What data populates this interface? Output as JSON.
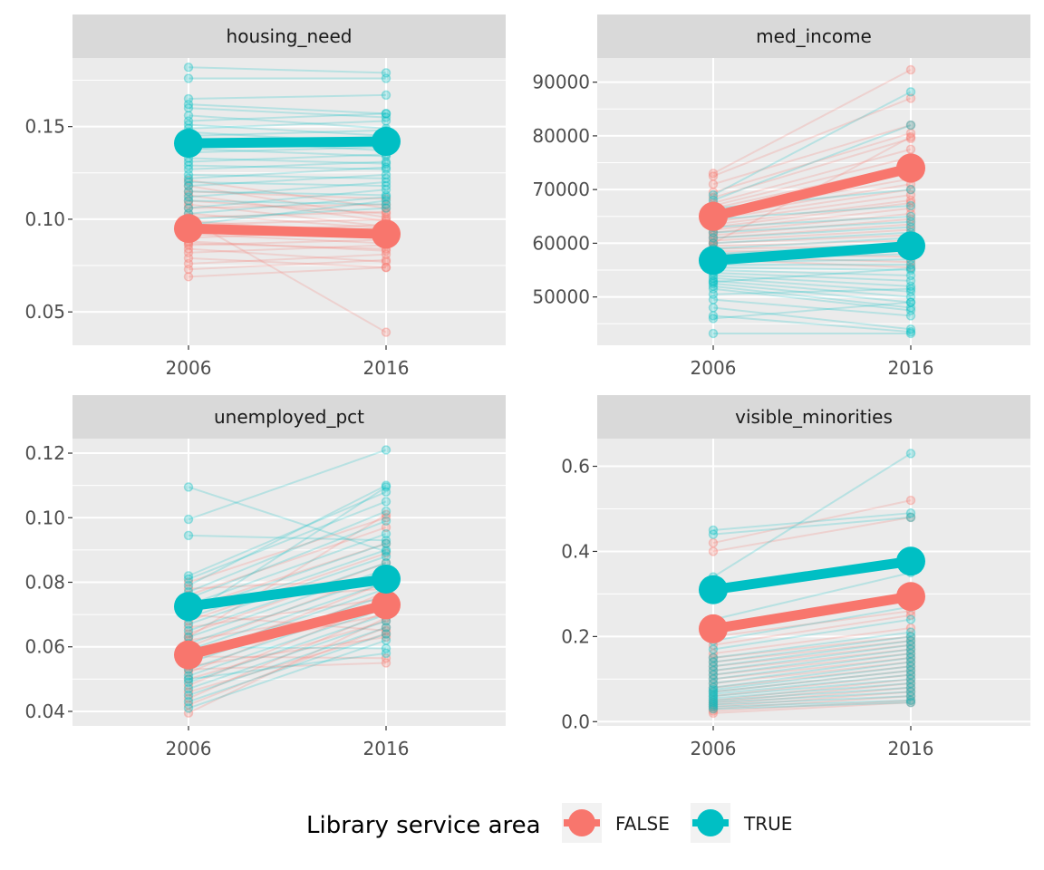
{
  "chart_data": {
    "type": "line",
    "x": [
      2006,
      2016
    ],
    "legend": {
      "title": "Library service area",
      "position": "bottom",
      "entries": [
        {
          "label": "FALSE",
          "color": "#F8766D"
        },
        {
          "label": "TRUE",
          "color": "#00BFC4"
        }
      ]
    },
    "colors": {
      "FALSE": "#F8766D",
      "TRUE": "#00BFC4",
      "panel_bg": "#EBEBEB",
      "strip_bg": "#D9D9D9",
      "grid": "#FFFFFF"
    },
    "grid": true,
    "panels": [
      {
        "title": "housing_need",
        "ylim": [
          0.032,
          0.187
        ],
        "yticks": [
          0.05,
          0.1,
          0.15
        ],
        "yticklabels": [
          "0.05",
          "0.10",
          "0.15"
        ],
        "means": {
          "FALSE": [
            0.095,
            0.092
          ],
          "TRUE": [
            0.141,
            0.142
          ]
        },
        "lines": {
          "FALSE": [
            [
              0.069,
              0.074
            ],
            [
              0.073,
              0.078
            ],
            [
              0.076,
              0.081
            ],
            [
              0.079,
              0.074
            ],
            [
              0.082,
              0.086
            ],
            [
              0.084,
              0.077
            ],
            [
              0.086,
              0.089
            ],
            [
              0.088,
              0.083
            ],
            [
              0.09,
              0.094
            ],
            [
              0.092,
              0.087
            ],
            [
              0.093,
              0.097
            ],
            [
              0.095,
              0.09
            ],
            [
              0.097,
              0.1
            ],
            [
              0.099,
              0.092
            ],
            [
              0.101,
              0.104
            ],
            [
              0.103,
              0.095
            ],
            [
              0.106,
              0.108
            ],
            [
              0.108,
              0.096
            ],
            [
              0.11,
              0.103
            ],
            [
              0.113,
              0.099
            ],
            [
              0.115,
              0.111
            ],
            [
              0.118,
              0.101
            ],
            [
              0.121,
              0.106
            ],
            [
              0.1,
              0.039
            ],
            [
              0.087,
              0.084
            ]
          ],
          "TRUE": [
            [
              0.182,
              0.179
            ],
            [
              0.176,
              0.176
            ],
            [
              0.165,
              0.167
            ],
            [
              0.162,
              0.157
            ],
            [
              0.16,
              0.155
            ],
            [
              0.156,
              0.149
            ],
            [
              0.153,
              0.157
            ],
            [
              0.151,
              0.145
            ],
            [
              0.149,
              0.153
            ],
            [
              0.147,
              0.141
            ],
            [
              0.145,
              0.148
            ],
            [
              0.143,
              0.137
            ],
            [
              0.14,
              0.142
            ],
            [
              0.138,
              0.134
            ],
            [
              0.136,
              0.139
            ],
            [
              0.133,
              0.13
            ],
            [
              0.131,
              0.135
            ],
            [
              0.129,
              0.127
            ],
            [
              0.127,
              0.131
            ],
            [
              0.124,
              0.122
            ],
            [
              0.122,
              0.128
            ],
            [
              0.12,
              0.118
            ],
            [
              0.118,
              0.124
            ],
            [
              0.115,
              0.113
            ],
            [
              0.112,
              0.12
            ],
            [
              0.11,
              0.108
            ],
            [
              0.106,
              0.116
            ],
            [
              0.103,
              0.112
            ],
            [
              0.1,
              0.106
            ],
            [
              0.097,
              0.11
            ]
          ]
        }
      },
      {
        "title": "med_income",
        "ylim": [
          41000,
          94500
        ],
        "yticks": [
          50000,
          60000,
          70000,
          80000,
          90000
        ],
        "yticklabels": [
          "50000",
          "60000",
          "70000",
          "80000",
          "90000"
        ],
        "means": {
          "FALSE": [
            65000,
            74000
          ],
          "TRUE": [
            56800,
            59500
          ]
        },
        "lines": {
          "FALSE": [
            [
              73000,
              92300
            ],
            [
              72500,
              87000
            ],
            [
              71000,
              82000
            ],
            [
              69500,
              80500
            ],
            [
              68500,
              79500
            ],
            [
              67500,
              77500
            ],
            [
              67000,
              76000
            ],
            [
              66500,
              74500
            ],
            [
              66000,
              73000
            ],
            [
              65500,
              72000
            ],
            [
              65000,
              71000
            ],
            [
              64500,
              70000
            ],
            [
              64000,
              69000
            ],
            [
              63500,
              68000
            ],
            [
              63000,
              67500
            ],
            [
              62500,
              66500
            ],
            [
              62000,
              65500
            ],
            [
              61500,
              64500
            ],
            [
              61000,
              63500
            ],
            [
              60500,
              62500
            ],
            [
              60000,
              61500
            ],
            [
              59500,
              60500
            ],
            [
              59000,
              59500
            ],
            [
              58500,
              58500
            ],
            [
              58000,
              57500
            ],
            [
              57500,
              56500
            ],
            [
              57000,
              55500
            ],
            [
              60000,
              79800
            ]
          ],
          "TRUE": [
            [
              69000,
              88200
            ],
            [
              68000,
              82000
            ],
            [
              66500,
              70000
            ],
            [
              64500,
              67000
            ],
            [
              63000,
              65000
            ],
            [
              62000,
              64000
            ],
            [
              61000,
              63000
            ],
            [
              60000,
              62000
            ],
            [
              59000,
              61000
            ],
            [
              58000,
              60000
            ],
            [
              57500,
              59000
            ],
            [
              57000,
              58000
            ],
            [
              56500,
              57000
            ],
            [
              56000,
              56000
            ],
            [
              55500,
              55000
            ],
            [
              55000,
              54000
            ],
            [
              54500,
              53000
            ],
            [
              54000,
              52000
            ],
            [
              53500,
              51000
            ],
            [
              53000,
              50000
            ],
            [
              52500,
              49000
            ],
            [
              52000,
              48000
            ],
            [
              51500,
              47500
            ],
            [
              50500,
              51500
            ],
            [
              49500,
              46500
            ],
            [
              48000,
              44000
            ],
            [
              46500,
              43500
            ],
            [
              46000,
              49000
            ],
            [
              43200,
              43200
            ],
            [
              52800,
              55300
            ]
          ]
        }
      },
      {
        "title": "unemployed_pct",
        "ylim": [
          0.0355,
          0.1245
        ],
        "yticks": [
          0.04,
          0.06,
          0.08,
          0.1,
          0.12
        ],
        "yticklabels": [
          "0.04",
          "0.06",
          "0.08",
          "0.10",
          "0.12"
        ],
        "means": {
          "FALSE": [
            0.0575,
            0.073
          ],
          "TRUE": [
            0.0725,
            0.081
          ]
        },
        "lines": {
          "FALSE": [
            [
              0.0395,
              0.069
            ],
            [
              0.042,
              0.066
            ],
            [
              0.044,
              0.071
            ],
            [
              0.046,
              0.064
            ],
            [
              0.048,
              0.074
            ],
            [
              0.05,
              0.068
            ],
            [
              0.052,
              0.077
            ],
            [
              0.054,
              0.063
            ],
            [
              0.056,
              0.08
            ],
            [
              0.058,
              0.07
            ],
            [
              0.06,
              0.083
            ],
            [
              0.062,
              0.072
            ],
            [
              0.064,
              0.086
            ],
            [
              0.066,
              0.075
            ],
            [
              0.068,
              0.089
            ],
            [
              0.07,
              0.065
            ],
            [
              0.072,
              0.092
            ],
            [
              0.074,
              0.078
            ],
            [
              0.076,
              0.097
            ],
            [
              0.078,
              0.081
            ],
            [
              0.08,
              0.1
            ],
            [
              0.053,
              0.055
            ],
            [
              0.057,
              0.0565
            ],
            [
              0.063,
              0.101
            ]
          ],
          "TRUE": [
            [
              0.1095,
              0.0895
            ],
            [
              0.0995,
              0.121
            ],
            [
              0.0945,
              0.093
            ],
            [
              0.082,
              0.108
            ],
            [
              0.081,
              0.105
            ],
            [
              0.079,
              0.11
            ],
            [
              0.077,
              0.102
            ],
            [
              0.075,
              0.099
            ],
            [
              0.073,
              0.095
            ],
            [
              0.071,
              0.092
            ],
            [
              0.069,
              0.09
            ],
            [
              0.067,
              0.088
            ],
            [
              0.065,
              0.086
            ],
            [
              0.063,
              0.084
            ],
            [
              0.061,
              0.082
            ],
            [
              0.059,
              0.08
            ],
            [
              0.057,
              0.078
            ],
            [
              0.055,
              0.076
            ],
            [
              0.053,
              0.074
            ],
            [
              0.051,
              0.072
            ],
            [
              0.049,
              0.07
            ],
            [
              0.047,
              0.068
            ],
            [
              0.045,
              0.066
            ],
            [
              0.043,
              0.064
            ],
            [
              0.041,
              0.062
            ],
            [
              0.05,
              0.058
            ],
            [
              0.06,
              0.0595
            ],
            [
              0.07,
              0.1095
            ]
          ]
        }
      },
      {
        "title": "visible_minorities",
        "ylim": [
          -0.01,
          0.665
        ],
        "yticks": [
          0.0,
          0.2,
          0.4,
          0.6
        ],
        "yticklabels": [
          "0.0",
          "0.2",
          "0.4",
          "0.6"
        ],
        "means": {
          "FALSE": [
            0.218,
            0.294
          ],
          "TRUE": [
            0.31,
            0.377
          ]
        },
        "lines": {
          "FALSE": [
            [
              0.42,
              0.52
            ],
            [
              0.4,
              0.48
            ],
            [
              0.22,
              0.3
            ],
            [
              0.2,
              0.26
            ],
            [
              0.18,
              0.25
            ],
            [
              0.16,
              0.22
            ],
            [
              0.15,
              0.2
            ],
            [
              0.14,
              0.19
            ],
            [
              0.13,
              0.18
            ],
            [
              0.12,
              0.17
            ],
            [
              0.11,
              0.16
            ],
            [
              0.1,
              0.15
            ],
            [
              0.09,
              0.14
            ],
            [
              0.08,
              0.13
            ],
            [
              0.07,
              0.12
            ],
            [
              0.06,
              0.11
            ],
            [
              0.05,
              0.1
            ],
            [
              0.045,
              0.09
            ],
            [
              0.04,
              0.08
            ],
            [
              0.035,
              0.07
            ],
            [
              0.03,
              0.06
            ],
            [
              0.025,
              0.05
            ],
            [
              0.02,
              0.045
            ]
          ],
          "TRUE": [
            [
              0.45,
              0.49
            ],
            [
              0.44,
              0.48
            ],
            [
              0.34,
              0.63
            ],
            [
              0.24,
              0.35
            ],
            [
              0.21,
              0.3
            ],
            [
              0.19,
              0.27
            ],
            [
              0.17,
              0.24
            ],
            [
              0.15,
              0.21
            ],
            [
              0.14,
              0.2
            ],
            [
              0.13,
              0.19
            ],
            [
              0.12,
              0.18
            ],
            [
              0.11,
              0.17
            ],
            [
              0.1,
              0.16
            ],
            [
              0.09,
              0.15
            ],
            [
              0.08,
              0.14
            ],
            [
              0.075,
              0.13
            ],
            [
              0.07,
              0.12
            ],
            [
              0.065,
              0.11
            ],
            [
              0.06,
              0.1
            ],
            [
              0.055,
              0.09
            ],
            [
              0.05,
              0.08
            ],
            [
              0.045,
              0.07
            ],
            [
              0.04,
              0.06
            ],
            [
              0.035,
              0.05
            ],
            [
              0.03,
              0.045
            ]
          ]
        }
      }
    ]
  }
}
